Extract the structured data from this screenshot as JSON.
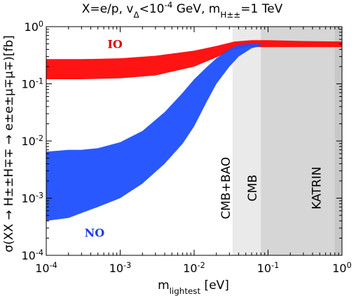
{
  "chart_data": {
    "type": "area",
    "title": "X=e/p, v_Δ<10^-4 GeV, m_H±±=1 TeV",
    "xlabel": "m_lightest [eV]",
    "ylabel": "σ(XX → H±±H∓∓ → e±e±μ∓μ∓)[fb]",
    "xscale": "log",
    "yscale": "log",
    "xlim": [
      0.0001,
      1
    ],
    "ylim": [
      0.0001,
      1
    ],
    "x_ticks": [
      "10^-4",
      "10^-3",
      "10^-2",
      "10^-1",
      "10^0"
    ],
    "y_ticks": [
      "10^-4",
      "10^-3",
      "10^-2",
      "10^-1",
      "10^0"
    ],
    "series": [
      {
        "name": "IO",
        "color": "#ff0000",
        "x": [
          0.0001,
          0.0003,
          0.001,
          0.003,
          0.01,
          0.02,
          0.035,
          0.06,
          0.1,
          0.3,
          1
        ],
        "upper": [
          0.27,
          0.27,
          0.28,
          0.31,
          0.38,
          0.46,
          0.55,
          0.58,
          0.58,
          0.56,
          0.55
        ],
        "lower": [
          0.12,
          0.12,
          0.125,
          0.14,
          0.2,
          0.29,
          0.4,
          0.44,
          0.44,
          0.44,
          0.44
        ]
      },
      {
        "name": "NO",
        "color": "#1f4fff",
        "x": [
          0.0001,
          0.0002,
          0.0003,
          0.0005,
          0.001,
          0.002,
          0.004,
          0.007,
          0.01,
          0.015,
          0.02,
          0.03,
          0.04,
          0.06,
          0.08
        ],
        "upper": [
          0.0065,
          0.007,
          0.007,
          0.0075,
          0.0095,
          0.015,
          0.032,
          0.07,
          0.12,
          0.2,
          0.28,
          0.4,
          0.48,
          0.5,
          0.5
        ],
        "lower": [
          0.0004,
          0.00045,
          0.00055,
          0.0007,
          0.001,
          0.0018,
          0.004,
          0.009,
          0.018,
          0.05,
          0.1,
          0.2,
          0.3,
          0.42,
          0.46
        ]
      }
    ],
    "bounds": [
      {
        "label": "CMB+BAO",
        "x_from": 0.033,
        "x_to": 1,
        "color": "#eaeaea"
      },
      {
        "label": "CMB",
        "x_from": 0.08,
        "x_to": 1,
        "color": "#d6d6d6"
      },
      {
        "label": "KATRIN",
        "x_from": 0.8,
        "x_to": 1,
        "color": "#c8c8c8"
      }
    ]
  }
}
